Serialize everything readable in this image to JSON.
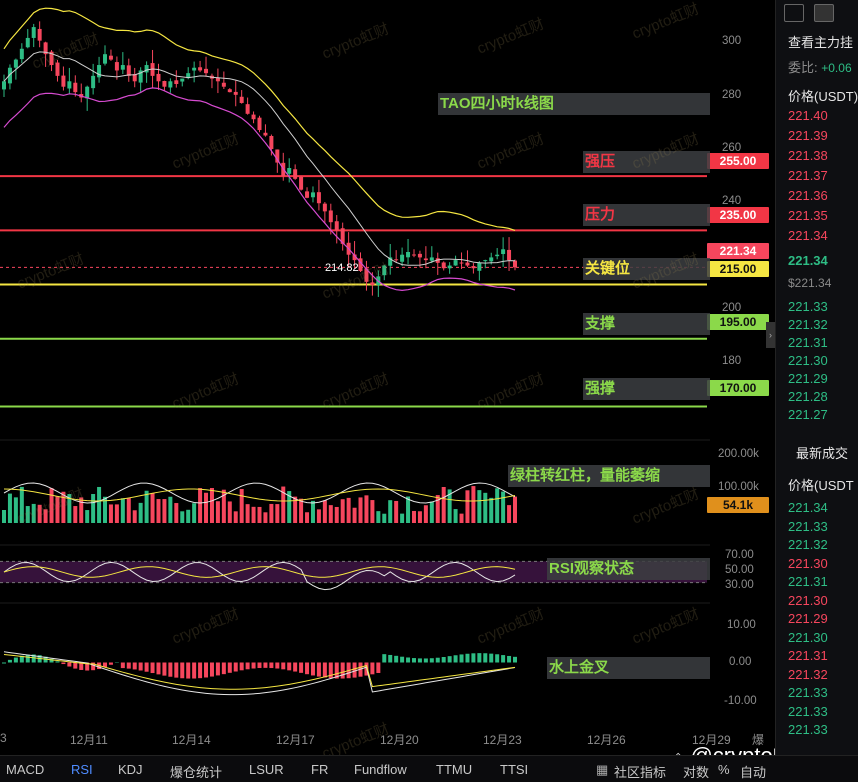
{
  "chart_data": {
    "type": "candlestick",
    "title": "TAO四小时k线图",
    "price_axis": {
      "ylim": [
        165,
        320
      ],
      "ticks": [
        300,
        280,
        260,
        240,
        200,
        180
      ]
    },
    "date_ticks": [
      "12月11",
      "12月14",
      "12月17",
      "12月20",
      "12月23",
      "12月26",
      "12月29"
    ],
    "date_tick_edge": [
      "3",
      "爆"
    ],
    "levels": [
      {
        "label": "强压",
        "value": "255.00",
        "price": 255,
        "color": "#f23645"
      },
      {
        "label": "压力",
        "value": "235.00",
        "price": 235,
        "color": "#f23645"
      },
      {
        "label": "关键位",
        "value": "215.00",
        "price": 215,
        "color": "#f5e642"
      },
      {
        "label": "支撑",
        "value": "195.00",
        "price": 195,
        "color": "#8bd94a"
      },
      {
        "label": "强撑",
        "value": "170.00",
        "price": 170,
        "color": "#8bd94a"
      }
    ],
    "current_price": {
      "value": "221.34",
      "price": 221.34
    },
    "low_marker": {
      "value": "214.82",
      "price": 214.82
    },
    "candles_close": [
      290,
      295,
      298,
      302,
      306,
      310,
      305,
      300,
      296,
      292,
      288,
      290,
      286,
      284,
      288,
      292,
      296,
      300,
      298,
      294,
      296,
      292,
      290,
      294,
      296,
      292,
      290,
      288,
      290,
      289,
      291,
      293,
      295,
      294,
      293,
      291,
      290,
      288,
      286,
      285,
      282,
      278,
      276,
      272,
      270,
      265,
      260,
      255,
      258,
      254,
      250,
      247,
      249,
      245,
      242,
      238,
      235,
      230,
      226,
      224,
      220,
      216,
      214.82,
      218,
      222,
      225,
      224,
      226,
      227,
      226,
      225,
      224,
      225,
      223,
      221,
      222,
      224,
      223,
      222,
      221,
      223,
      224,
      225,
      226,
      228,
      224,
      221.34
    ],
    "volume": {
      "ticks": [
        "200.00k",
        "100.00k"
      ],
      "value": "54.1k",
      "ylim": [
        0,
        220
      ]
    },
    "rsi": {
      "ticks": [
        "70.00",
        "50.00",
        "30.00"
      ],
      "ylim": [
        20,
        80
      ]
    },
    "macd": {
      "ticks": [
        "10.00",
        "0.00",
        "-10.00"
      ],
      "ylim": [
        -14,
        14
      ]
    },
    "annotations": {
      "volume": "绿柱转红柱，量能萎缩",
      "rsi": "RSI观察状态",
      "macd": "水上金叉"
    },
    "colors": {
      "up": "#2ebd85",
      "down": "#f6465d",
      "yellow": "#f5e642",
      "magenta": "#d64bd0",
      "white": "#d9d9d9"
    }
  },
  "watermark": "crypto虹财",
  "branding": {
    "text": "@crypto虹财"
  },
  "orderbook": {
    "title": "查看主力挂",
    "ratio_label": "委比:",
    "ratio_value": "+0.06",
    "price_header": "价格(USDT)",
    "asks": [
      "221.40",
      "221.39",
      "221.38",
      "221.37",
      "221.36",
      "221.35",
      "221.34"
    ],
    "last": "221.34",
    "last_sub": "$221.34",
    "bids": [
      "221.33",
      "221.32",
      "221.31",
      "221.30",
      "221.29",
      "221.28",
      "221.27"
    ]
  },
  "trades": {
    "title": "最新成交",
    "price_header": "价格(USDT",
    "prices": [
      "221.34",
      "221.33",
      "221.32",
      "221.30",
      "221.31",
      "221.30",
      "221.29",
      "221.30",
      "221.31",
      "221.32",
      "221.33",
      "221.33",
      "221.33"
    ]
  },
  "bottom_tabs": {
    "left": [
      "MACD",
      "RSI",
      "KDJ",
      "爆仓统计",
      "LSUR",
      "FR",
      "Fundflow",
      "TTMU",
      "TTSI"
    ],
    "active": "RSI",
    "right": [
      "社区指标",
      "对数",
      "%",
      "自动"
    ]
  }
}
